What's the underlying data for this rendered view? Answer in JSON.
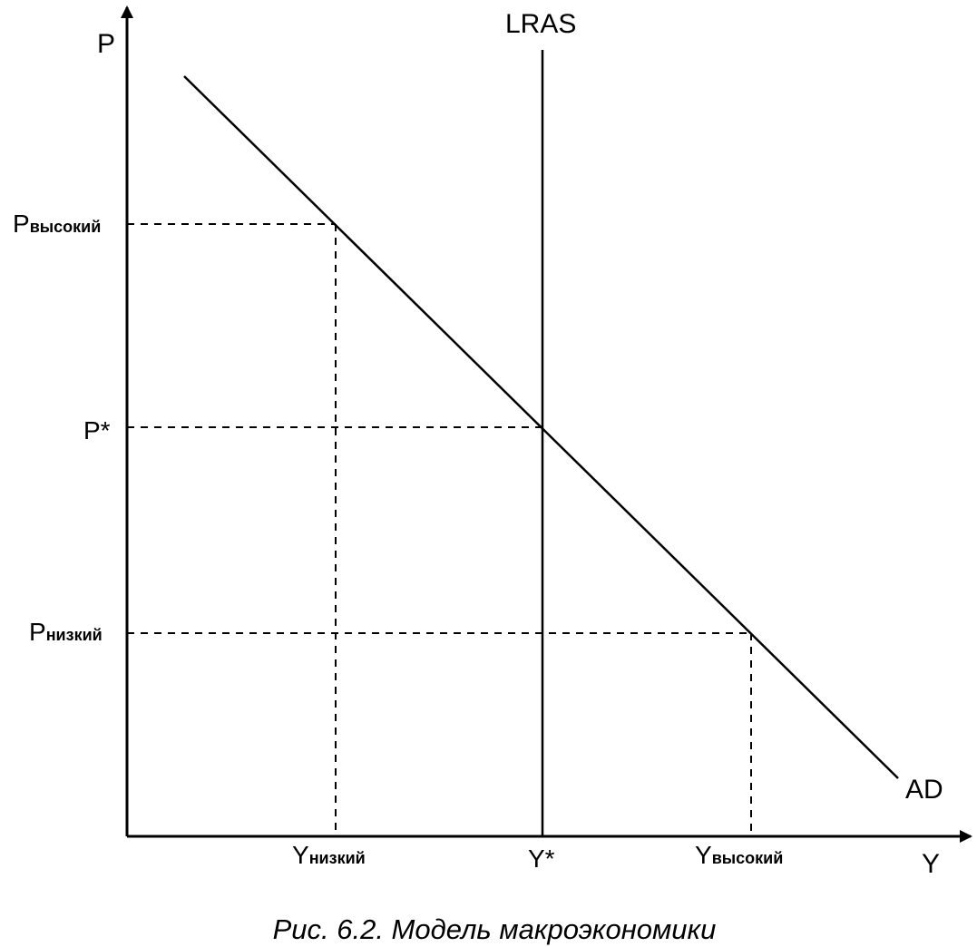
{
  "figure": {
    "caption": "Рис. 6.2. Модель макроэкономики",
    "axes": {
      "y_label": "P",
      "x_label": "Y"
    },
    "curves": {
      "lras_label": "LRAS",
      "ad_label": "AD"
    },
    "y_ticks": {
      "p_high_main": "P",
      "p_high_sub": "высокий",
      "p_eq": "P*",
      "p_low_main": "P",
      "p_low_sub": "низкий"
    },
    "x_ticks": {
      "y_low_main": "Y",
      "y_low_sub": "низкий",
      "y_eq": "Y*",
      "y_high_main": "Y",
      "y_high_sub": "высокий"
    },
    "colors": {
      "ink": "#000000",
      "background": "#ffffff"
    }
  }
}
